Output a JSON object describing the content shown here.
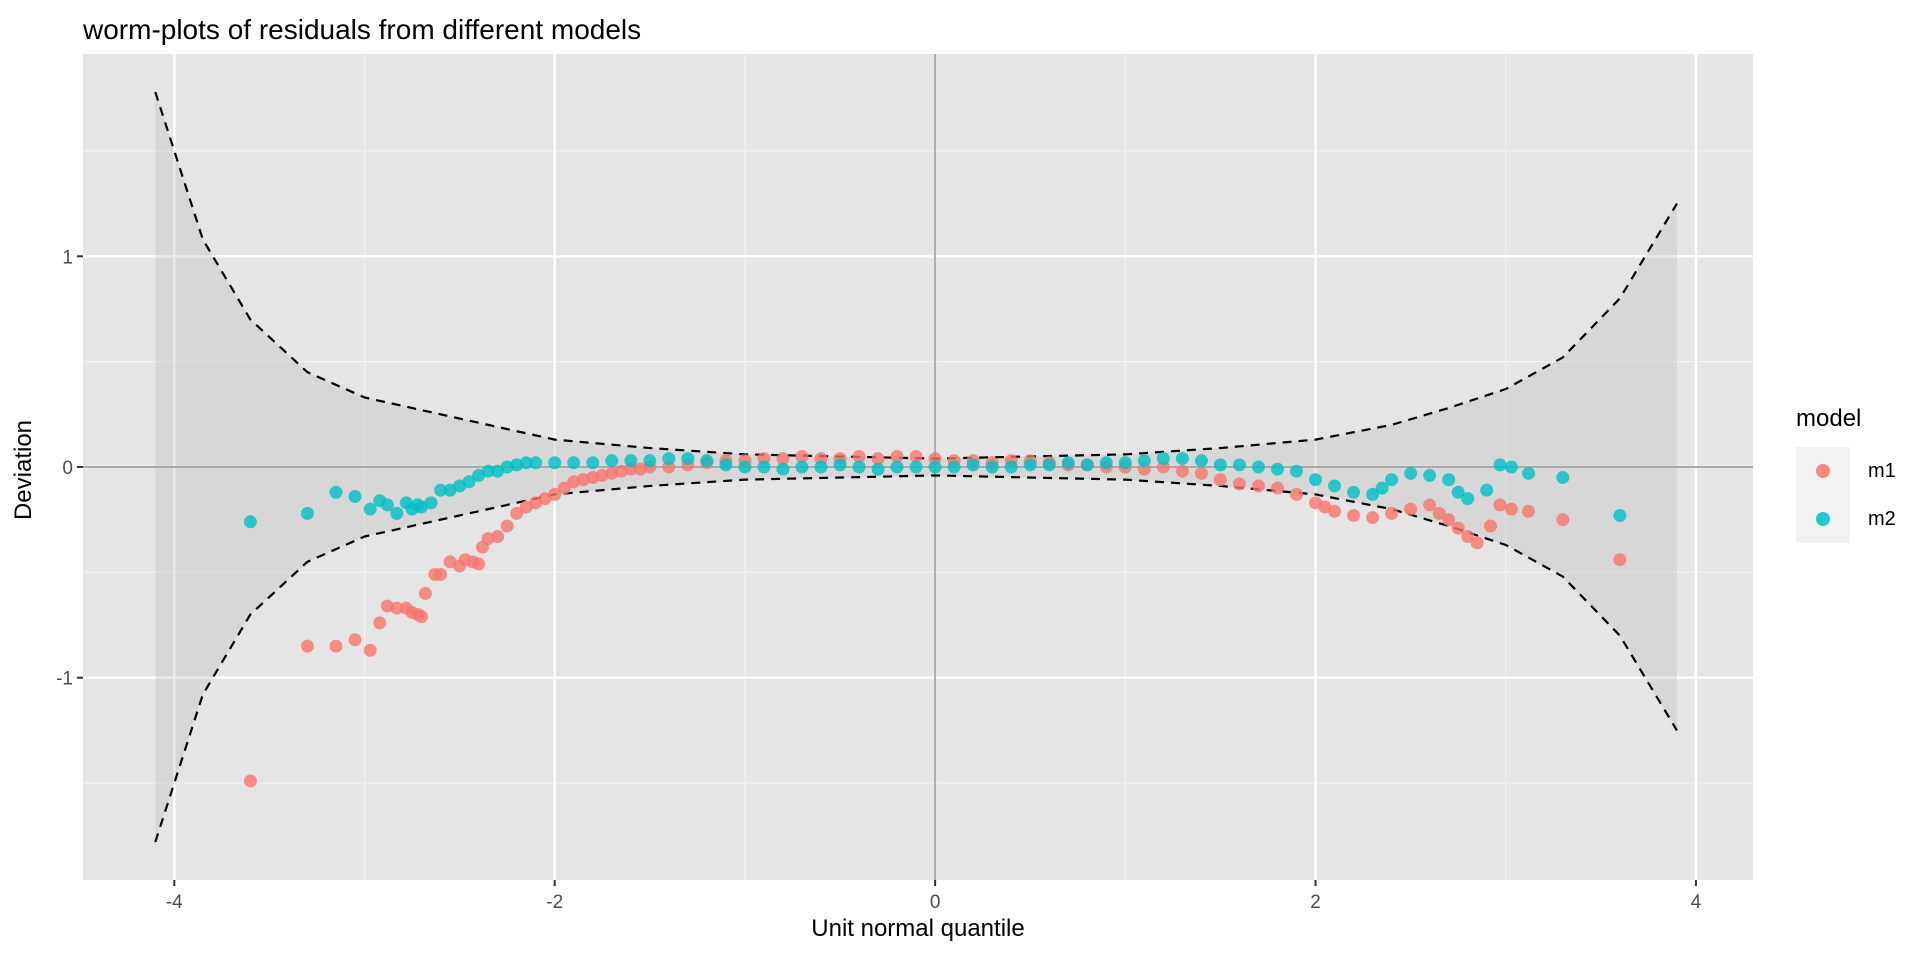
{
  "chart_data": {
    "type": "scatter",
    "title": "worm-plots of residuals from different models",
    "xlabel": "Unit normal quantile",
    "ylabel": "Deviation",
    "xlim": [
      -4.48,
      4.3
    ],
    "ylim": [
      -1.96,
      1.96
    ],
    "x_ticks": [
      -4,
      -2,
      0,
      2,
      4
    ],
    "x_tick_labels": [
      "-4",
      "-2",
      "0",
      "2",
      "4"
    ],
    "y_ticks": [
      -1,
      0,
      1
    ],
    "y_tick_labels": [
      "-1",
      "0",
      "1"
    ],
    "x_minor": [
      -3,
      -1,
      1,
      3
    ],
    "y_minor": [
      -1.5,
      -0.5,
      0.5,
      1.5
    ],
    "grid": true,
    "legend": {
      "title": "model",
      "position": "right"
    },
    "reference_lines": {
      "h": 0,
      "v": 0
    },
    "band": {
      "x": [
        -4.1,
        -3.85,
        -3.6,
        -3.3,
        -3.0,
        -2.7,
        -2.4,
        -2.0,
        -1.5,
        -1.0,
        0,
        1.0,
        1.5,
        2.0,
        2.4,
        2.7,
        3.0,
        3.3,
        3.6,
        3.9
      ],
      "upper": [
        1.78,
        1.08,
        0.7,
        0.45,
        0.33,
        0.27,
        0.21,
        0.13,
        0.09,
        0.06,
        0.04,
        0.06,
        0.09,
        0.13,
        0.2,
        0.28,
        0.37,
        0.52,
        0.8,
        1.25
      ],
      "lower": [
        -1.78,
        -1.08,
        -0.7,
        -0.45,
        -0.33,
        -0.27,
        -0.21,
        -0.13,
        -0.09,
        -0.06,
        -0.04,
        -0.06,
        -0.09,
        -0.13,
        -0.2,
        -0.28,
        -0.37,
        -0.52,
        -0.8,
        -1.25
      ]
    },
    "series": [
      {
        "name": "m1",
        "color": "#F8766D",
        "points": [
          [
            -3.6,
            -1.49
          ],
          [
            -3.3,
            -0.85
          ],
          [
            -3.15,
            -0.85
          ],
          [
            -3.05,
            -0.82
          ],
          [
            -2.97,
            -0.87
          ],
          [
            -2.92,
            -0.74
          ],
          [
            -2.88,
            -0.66
          ],
          [
            -2.83,
            -0.67
          ],
          [
            -2.78,
            -0.67
          ],
          [
            -2.75,
            -0.69
          ],
          [
            -2.72,
            -0.7
          ],
          [
            -2.7,
            -0.71
          ],
          [
            -2.68,
            -0.6
          ],
          [
            -2.63,
            -0.51
          ],
          [
            -2.6,
            -0.51
          ],
          [
            -2.55,
            -0.45
          ],
          [
            -2.5,
            -0.47
          ],
          [
            -2.47,
            -0.44
          ],
          [
            -2.43,
            -0.45
          ],
          [
            -2.4,
            -0.46
          ],
          [
            -2.38,
            -0.38
          ],
          [
            -2.35,
            -0.34
          ],
          [
            -2.3,
            -0.33
          ],
          [
            -2.25,
            -0.28
          ],
          [
            -2.2,
            -0.22
          ],
          [
            -2.15,
            -0.19
          ],
          [
            -2.1,
            -0.17
          ],
          [
            -2.05,
            -0.15
          ],
          [
            -2.0,
            -0.13
          ],
          [
            -1.95,
            -0.1
          ],
          [
            -1.9,
            -0.07
          ],
          [
            -1.85,
            -0.06
          ],
          [
            -1.8,
            -0.05
          ],
          [
            -1.75,
            -0.04
          ],
          [
            -1.7,
            -0.03
          ],
          [
            -1.65,
            -0.02
          ],
          [
            -1.6,
            -0.01
          ],
          [
            -1.55,
            -0.01
          ],
          [
            -1.5,
            0.0
          ],
          [
            -1.4,
            0.0
          ],
          [
            -1.3,
            0.01
          ],
          [
            -1.2,
            0.02
          ],
          [
            -1.1,
            0.03
          ],
          [
            -1.0,
            0.03
          ],
          [
            -0.9,
            0.04
          ],
          [
            -0.8,
            0.04
          ],
          [
            -0.7,
            0.05
          ],
          [
            -0.6,
            0.04
          ],
          [
            -0.5,
            0.04
          ],
          [
            -0.4,
            0.05
          ],
          [
            -0.3,
            0.04
          ],
          [
            -0.2,
            0.05
          ],
          [
            -0.1,
            0.05
          ],
          [
            0.0,
            0.04
          ],
          [
            0.1,
            0.03
          ],
          [
            0.2,
            0.03
          ],
          [
            0.3,
            0.02
          ],
          [
            0.4,
            0.03
          ],
          [
            0.5,
            0.03
          ],
          [
            0.6,
            0.02
          ],
          [
            0.7,
            0.01
          ],
          [
            0.8,
            0.01
          ],
          [
            0.9,
            0.0
          ],
          [
            1.0,
            0.0
          ],
          [
            1.1,
            -0.01
          ],
          [
            1.2,
            0.0
          ],
          [
            1.3,
            -0.02
          ],
          [
            1.4,
            -0.03
          ],
          [
            1.5,
            -0.06
          ],
          [
            1.6,
            -0.08
          ],
          [
            1.7,
            -0.09
          ],
          [
            1.8,
            -0.1
          ],
          [
            1.9,
            -0.13
          ],
          [
            2.0,
            -0.17
          ],
          [
            2.05,
            -0.19
          ],
          [
            2.1,
            -0.21
          ],
          [
            2.2,
            -0.23
          ],
          [
            2.3,
            -0.24
          ],
          [
            2.4,
            -0.22
          ],
          [
            2.5,
            -0.2
          ],
          [
            2.6,
            -0.18
          ],
          [
            2.65,
            -0.22
          ],
          [
            2.7,
            -0.25
          ],
          [
            2.75,
            -0.29
          ],
          [
            2.8,
            -0.33
          ],
          [
            2.85,
            -0.36
          ],
          [
            2.92,
            -0.28
          ],
          [
            2.97,
            -0.18
          ],
          [
            3.03,
            -0.2
          ],
          [
            3.12,
            -0.21
          ],
          [
            3.3,
            -0.25
          ],
          [
            3.6,
            -0.44
          ]
        ]
      },
      {
        "name": "m2",
        "color": "#00BFC4",
        "points": [
          [
            -3.6,
            -0.26
          ],
          [
            -3.3,
            -0.22
          ],
          [
            -3.15,
            -0.12
          ],
          [
            -3.05,
            -0.14
          ],
          [
            -2.97,
            -0.2
          ],
          [
            -2.92,
            -0.16
          ],
          [
            -2.88,
            -0.18
          ],
          [
            -2.83,
            -0.22
          ],
          [
            -2.78,
            -0.17
          ],
          [
            -2.75,
            -0.2
          ],
          [
            -2.72,
            -0.18
          ],
          [
            -2.7,
            -0.19
          ],
          [
            -2.65,
            -0.17
          ],
          [
            -2.6,
            -0.11
          ],
          [
            -2.55,
            -0.11
          ],
          [
            -2.5,
            -0.09
          ],
          [
            -2.45,
            -0.07
          ],
          [
            -2.4,
            -0.04
          ],
          [
            -2.35,
            -0.02
          ],
          [
            -2.3,
            -0.02
          ],
          [
            -2.25,
            0.0
          ],
          [
            -2.2,
            0.01
          ],
          [
            -2.15,
            0.02
          ],
          [
            -2.1,
            0.02
          ],
          [
            -2.0,
            0.02
          ],
          [
            -1.9,
            0.02
          ],
          [
            -1.8,
            0.02
          ],
          [
            -1.7,
            0.03
          ],
          [
            -1.6,
            0.03
          ],
          [
            -1.5,
            0.03
          ],
          [
            -1.4,
            0.04
          ],
          [
            -1.3,
            0.04
          ],
          [
            -1.2,
            0.03
          ],
          [
            -1.1,
            0.01
          ],
          [
            -1.0,
            0.0
          ],
          [
            -0.9,
            0.0
          ],
          [
            -0.8,
            -0.01
          ],
          [
            -0.7,
            0.0
          ],
          [
            -0.6,
            0.0
          ],
          [
            -0.5,
            0.01
          ],
          [
            -0.4,
            0.0
          ],
          [
            -0.3,
            -0.01
          ],
          [
            -0.2,
            0.0
          ],
          [
            -0.1,
            0.0
          ],
          [
            0.0,
            0.0
          ],
          [
            0.1,
            0.0
          ],
          [
            0.2,
            0.01
          ],
          [
            0.3,
            0.0
          ],
          [
            0.4,
            0.0
          ],
          [
            0.5,
            0.01
          ],
          [
            0.6,
            0.01
          ],
          [
            0.7,
            0.02
          ],
          [
            0.8,
            0.01
          ],
          [
            0.9,
            0.02
          ],
          [
            1.0,
            0.02
          ],
          [
            1.1,
            0.03
          ],
          [
            1.2,
            0.04
          ],
          [
            1.3,
            0.04
          ],
          [
            1.4,
            0.03
          ],
          [
            1.5,
            0.01
          ],
          [
            1.6,
            0.01
          ],
          [
            1.7,
            0.0
          ],
          [
            1.8,
            -0.01
          ],
          [
            1.9,
            -0.02
          ],
          [
            2.0,
            -0.06
          ],
          [
            2.1,
            -0.09
          ],
          [
            2.2,
            -0.12
          ],
          [
            2.3,
            -0.13
          ],
          [
            2.35,
            -0.1
          ],
          [
            2.4,
            -0.06
          ],
          [
            2.5,
            -0.03
          ],
          [
            2.6,
            -0.04
          ],
          [
            2.7,
            -0.06
          ],
          [
            2.75,
            -0.12
          ],
          [
            2.8,
            -0.15
          ],
          [
            2.9,
            -0.11
          ],
          [
            2.97,
            0.01
          ],
          [
            3.03,
            0.0
          ],
          [
            3.12,
            -0.03
          ],
          [
            3.3,
            -0.05
          ],
          [
            3.6,
            -0.23
          ]
        ]
      }
    ]
  }
}
